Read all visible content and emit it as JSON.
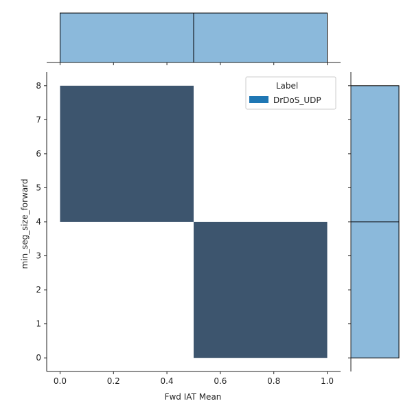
{
  "chart_data": {
    "type": "heatmap",
    "title": "",
    "xlabel": "Fwd IAT Mean",
    "ylabel": "min_seg_size_forward",
    "xlim": [
      -0.05,
      1.05
    ],
    "ylim": [
      -0.4,
      8.4
    ],
    "x_ticks": [
      "0.0",
      "0.2",
      "0.4",
      "0.6",
      "0.8",
      "1.0"
    ],
    "y_ticks": [
      "0",
      "1",
      "2",
      "3",
      "4",
      "5",
      "6",
      "7",
      "8"
    ],
    "cells": [
      {
        "x0": 0.0,
        "x1": 0.5,
        "y0": 4,
        "y1": 8
      },
      {
        "x0": 0.5,
        "x1": 1.0,
        "y0": 0,
        "y1": 4
      }
    ],
    "x_marginal": [
      {
        "x0": 0.0,
        "x1": 0.5,
        "count": 1
      },
      {
        "x0": 0.5,
        "x1": 1.0,
        "count": 1
      }
    ],
    "y_marginal": [
      {
        "y0": 0,
        "y1": 4,
        "count": 1
      },
      {
        "y0": 4,
        "y1": 8,
        "count": 1
      }
    ],
    "legend": {
      "title": "Label",
      "entries": [
        {
          "label": "DrDoS_UDP",
          "color": "#1f77b4"
        }
      ],
      "placement": "top-right"
    },
    "colors": {
      "cell": "#3d556e",
      "marginal": "#8bb9db",
      "marginal_edge": "#000000"
    }
  }
}
